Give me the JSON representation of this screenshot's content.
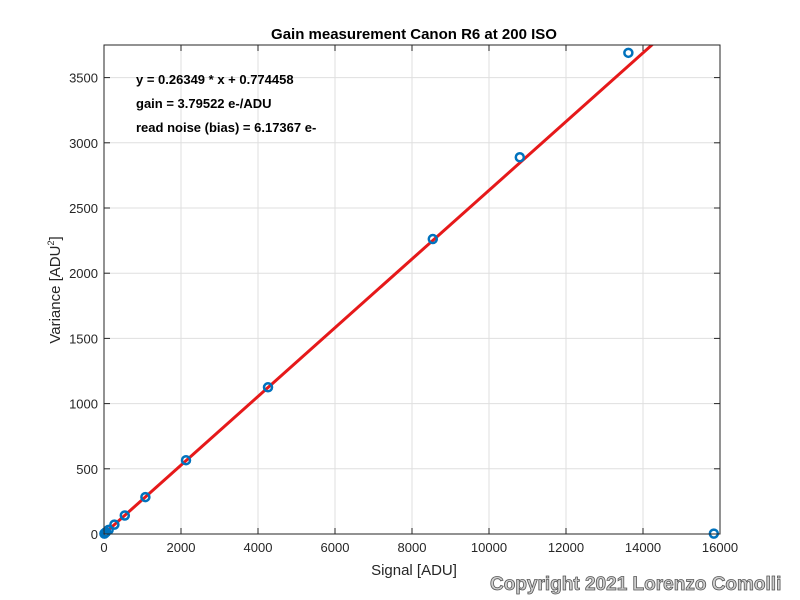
{
  "chart_data": {
    "type": "scatter",
    "title": "Gain measurement Canon R6 at 200 ISO",
    "xlabel": "Signal [ADU]",
    "ylabel": "Variance [ADU",
    "ylabel_superscript": "2",
    "ylabel_suffix": "]",
    "xlim": [
      0,
      16000
    ],
    "ylim": [
      0,
      3750
    ],
    "xticks": [
      0,
      2000,
      4000,
      6000,
      8000,
      10000,
      12000,
      14000,
      16000
    ],
    "yticks": [
      0,
      500,
      1000,
      1500,
      2000,
      2500,
      3000,
      3500
    ],
    "grid": true,
    "series": [
      {
        "kind": "points",
        "color": "#0072BD",
        "x": [
          10,
          25,
          55,
          120,
          270,
          540,
          1075,
          2130,
          4260,
          8540,
          10800,
          13620,
          15840
        ],
        "y": [
          3,
          7,
          15,
          32,
          72,
          142,
          283,
          566,
          1125,
          2262,
          2889,
          3690,
          3
        ]
      },
      {
        "kind": "fit-line",
        "color": "#E6191A",
        "slope": 0.26349,
        "intercept": 0.774458
      }
    ],
    "annotations": [
      "y = 0.26349 * x + 0.774458",
      "gain = 3.79522 e-/ADU",
      "read noise (bias) = 6.17367 e-"
    ]
  },
  "watermark": "Copyright 2021 Lorenzo Comolli"
}
